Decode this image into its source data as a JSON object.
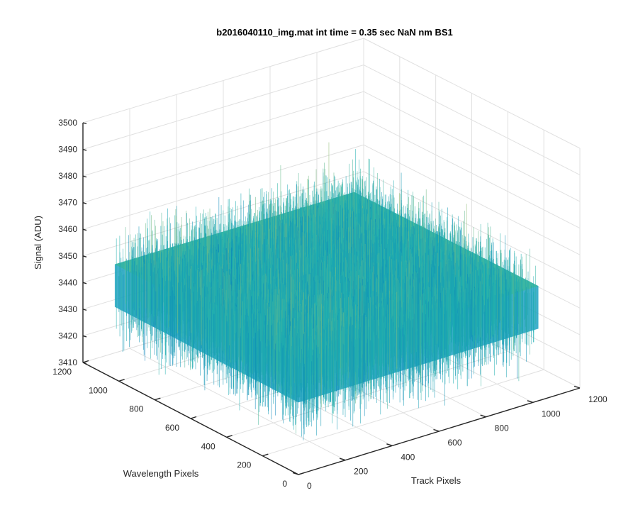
{
  "chart_data": {
    "type": "surface",
    "title": "b2016040110_img.mat int time = 0.35 sec  NaN nm BS1",
    "xlabel": "Track Pixels",
    "ylabel": "Wavelength Pixels",
    "zlabel": "Signal (ADU)",
    "xlim": [
      0,
      1200
    ],
    "ylim": [
      0,
      1200
    ],
    "zlim": [
      3410,
      3500
    ],
    "x_ticks": [
      "0",
      "200",
      "400",
      "600",
      "800",
      "1000",
      "1200"
    ],
    "y_ticks": [
      "0",
      "200",
      "400",
      "600",
      "800",
      "1000",
      "1200"
    ],
    "z_ticks": [
      "3410",
      "3420",
      "3430",
      "3440",
      "3450",
      "3460",
      "3470",
      "3480",
      "3490",
      "3500"
    ],
    "data_extent": {
      "x": [
        1,
        1024
      ],
      "y": [
        1,
        1024
      ]
    },
    "signal_mean": 3445,
    "signal_noise_range": [
      3415,
      3485
    ],
    "colormap": "parula",
    "colors": {
      "low": "#0072bd",
      "mid": "#21b2b0",
      "high": "#d8c34f"
    },
    "grid": true
  }
}
